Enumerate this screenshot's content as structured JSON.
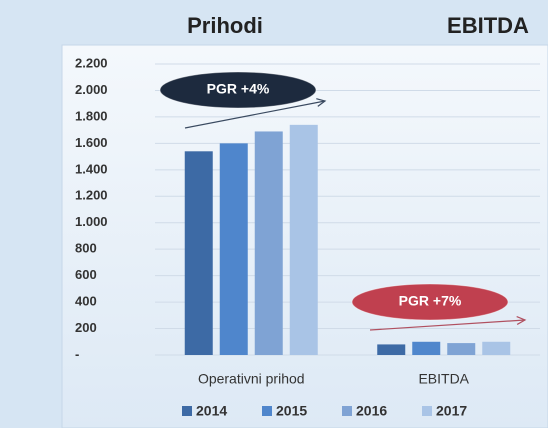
{
  "chart_data": {
    "type": "bar",
    "titles": [
      "Prihodi",
      "EBITDA"
    ],
    "categories": [
      "Operativni prihod",
      "EBITDA"
    ],
    "series": [
      {
        "name": "2014",
        "color": "#3d6aa5",
        "values": [
          1540,
          80
        ]
      },
      {
        "name": "2015",
        "color": "#4f86cc",
        "values": [
          1600,
          100
        ]
      },
      {
        "name": "2016",
        "color": "#7fa3d4",
        "values": [
          1690,
          90
        ]
      },
      {
        "name": "2017",
        "color": "#a9c4e6",
        "values": [
          1740,
          100
        ]
      }
    ],
    "ylim": [
      0,
      2200
    ],
    "yticks": [
      {
        "value": 0,
        "label": "-"
      },
      200,
      400,
      600,
      800,
      {
        "value": 1000,
        "label": "1.000"
      },
      {
        "value": 1200,
        "label": "1.200"
      },
      {
        "value": 1400,
        "label": "1.400"
      },
      {
        "value": 1600,
        "label": "1.600"
      },
      {
        "value": 1800,
        "label": "1.800"
      },
      {
        "value": 2000,
        "label": "2.000"
      },
      {
        "value": 2200,
        "label": "2.200"
      }
    ],
    "grid": true,
    "legend": "bottom",
    "annotations": [
      {
        "text": "PGR +4%",
        "color": "#1d2a3e",
        "arrow_color": "#3a4a60"
      },
      {
        "text": "PGR +7%",
        "color": "#c0404f",
        "arrow_color": "#b05060"
      }
    ]
  }
}
